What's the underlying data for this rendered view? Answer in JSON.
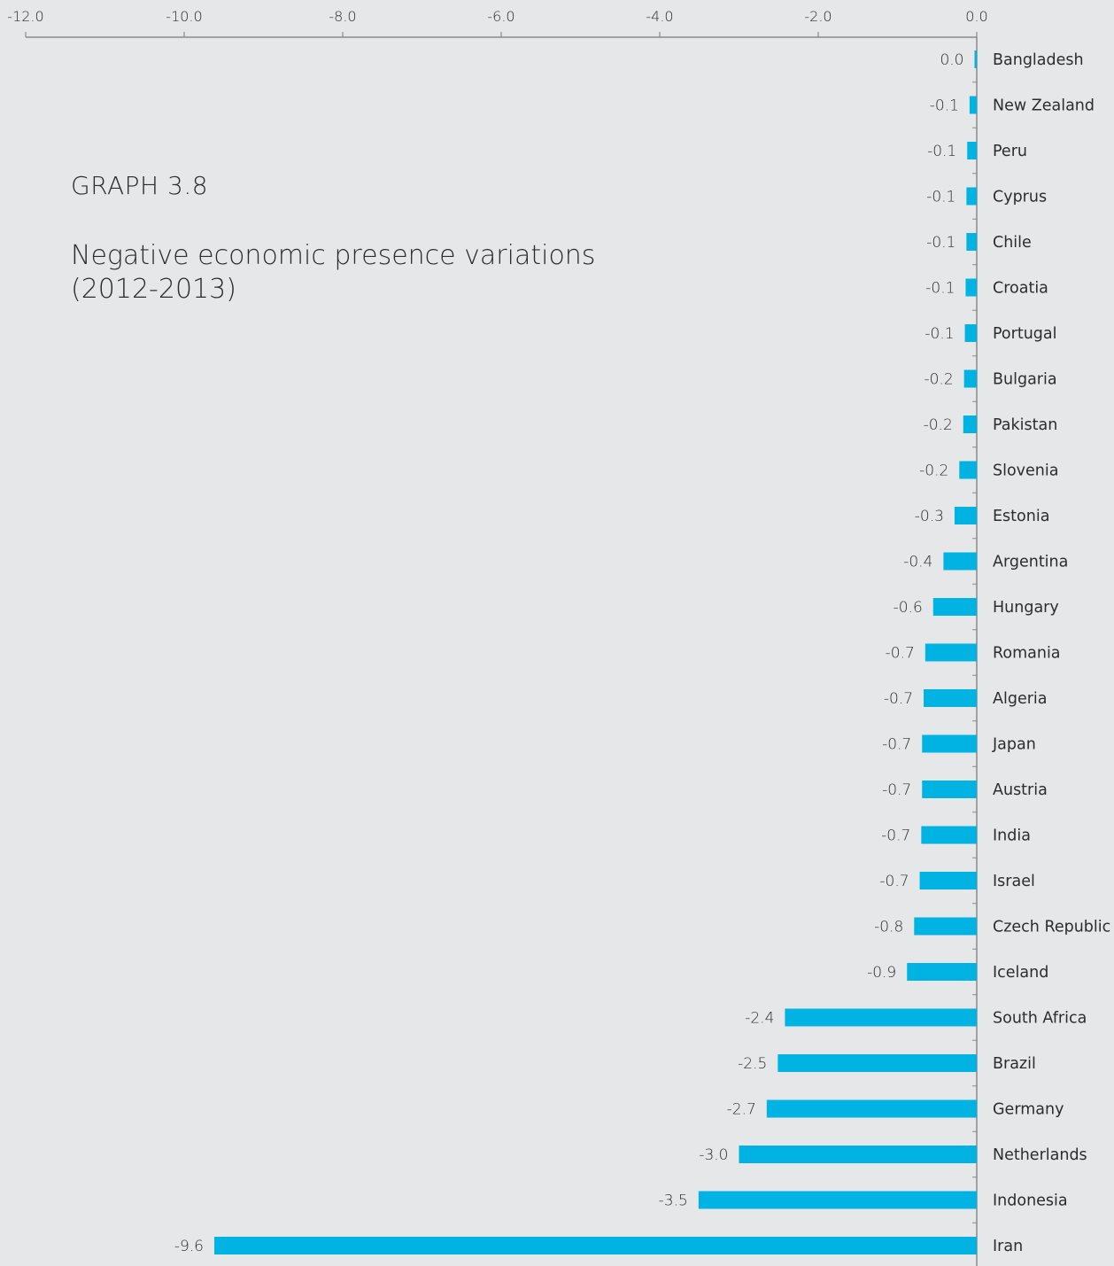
{
  "heading": {
    "graph_number": "GRAPH 3.8",
    "title": "Negative economic presence variations (2012-2013)"
  },
  "colors": {
    "background": "#e6e7e9",
    "bar": "#00b3e3",
    "axis": "#8a8a8a",
    "text": "#2c2c2c"
  },
  "chart_data": {
    "type": "bar",
    "orientation": "horizontal",
    "title": "Negative economic presence variations (2012-2013)",
    "xlabel": "",
    "ylabel": "",
    "xlim": [
      -12.0,
      0.0
    ],
    "x_ticks": [
      "-12.0",
      "-10.0",
      "-8.0",
      "-6.0",
      "-4.0",
      "-2.0",
      "0.0"
    ],
    "x_axis_position": "top",
    "category_axis_position": "right",
    "grid": false,
    "categories": [
      "Bangladesh",
      "New Zealand",
      "Peru",
      "Cyprus",
      "Chile",
      "Croatia",
      "Portugal",
      "Bulgaria",
      "Pakistan",
      "Slovenia",
      "Estonia",
      "Argentina",
      "Hungary",
      "Romania",
      "Algeria",
      "Japan",
      "Austria",
      "India",
      "Israel",
      "Czech Republic",
      "Iceland",
      "South Africa",
      "Brazil",
      "Germany",
      "Netherlands",
      "Indonesia",
      "Iran"
    ],
    "values": [
      -0.02,
      -0.09,
      -0.12,
      -0.13,
      -0.13,
      -0.14,
      -0.15,
      -0.16,
      -0.17,
      -0.22,
      -0.28,
      -0.42,
      -0.55,
      -0.65,
      -0.67,
      -0.69,
      -0.69,
      -0.7,
      -0.72,
      -0.79,
      -0.88,
      -2.42,
      -2.51,
      -2.65,
      -3.0,
      -3.51,
      -9.62
    ],
    "value_labels": [
      "0.0",
      "-0.1",
      "-0.1",
      "-0.1",
      "-0.1",
      "-0.1",
      "-0.1",
      "-0.2",
      "-0.2",
      "-0.2",
      "-0.3",
      "-0.4",
      "-0.6",
      "-0.7",
      "-0.7",
      "-0.7",
      "-0.7",
      "-0.7",
      "-0.7",
      "-0.8",
      "-0.9",
      "-2.4",
      "-2.5",
      "-2.7",
      "-3.0",
      "-3.5",
      "-9.6"
    ]
  }
}
